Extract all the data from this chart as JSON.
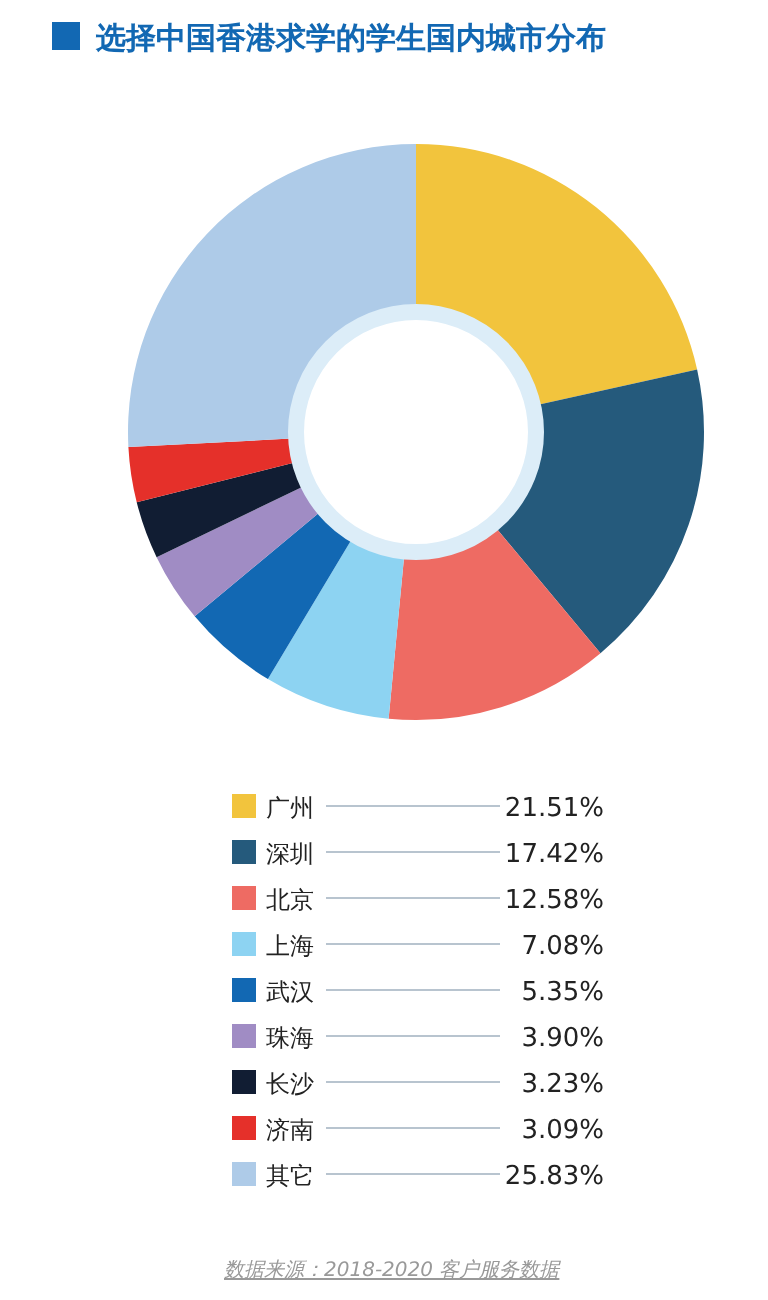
{
  "chart_data": {
    "type": "donut",
    "title": "选择中国香港求学的学生国内城市分布",
    "categories": [
      "广州",
      "深圳",
      "北京",
      "上海",
      "武汉",
      "珠海",
      "长沙",
      "济南",
      "其它"
    ],
    "values": [
      21.51,
      17.42,
      12.58,
      7.08,
      5.35,
      3.9,
      3.23,
      3.09,
      25.83
    ],
    "value_labels": [
      "21.51%",
      "17.42%",
      "12.58%",
      "7.08%",
      "5.35%",
      "3.90%",
      "3.23%",
      "3.09%",
      "25.83%"
    ],
    "colors": [
      "#f2c43d",
      "#255a7c",
      "#ee6b63",
      "#8dd3f2",
      "#1268b3",
      "#a08cc4",
      "#111d33",
      "#e5302a",
      "#aecbe8"
    ],
    "legend": "bottom",
    "annotations": [
      "数据来源：2018-2020 客户服务数据"
    ]
  }
}
